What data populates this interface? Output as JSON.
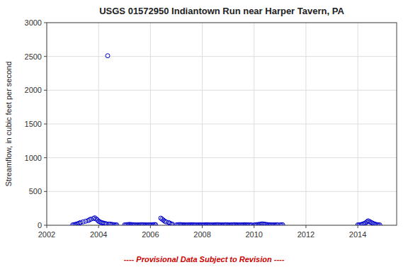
{
  "chart_data": {
    "type": "scatter",
    "title": "USGS 01572950 Indiantown Run near Harper Tavern, PA",
    "ylabel": "Streamflow, in cubic feet per second",
    "annotations": [
      {
        "text": "---- Provisional Data Subject to Revision ----",
        "color": "#cc0000"
      }
    ],
    "color": "#0000cc",
    "marker": "circle",
    "grid": true,
    "xlim": [
      2002,
      2015.5
    ],
    "ylim": [
      0,
      3000
    ],
    "xticks": [
      2002,
      2004,
      2006,
      2008,
      2010,
      2012,
      2014
    ],
    "yticks": [
      0,
      500,
      1000,
      1500,
      2000,
      2500,
      3000
    ],
    "x": [
      2003.0,
      2003.05,
      2003.1,
      2003.15,
      2003.2,
      2003.25,
      2003.3,
      2003.4,
      2003.5,
      2003.6,
      2003.65,
      2003.7,
      2003.8,
      2003.85,
      2003.9,
      2003.95,
      2004.0,
      2004.05,
      2004.1,
      2004.15,
      2004.2,
      2004.25,
      2004.3,
      2004.35,
      2004.4,
      2004.45,
      2004.5,
      2004.55,
      2004.6,
      2004.65,
      2004.7,
      2005.0,
      2005.05,
      2005.1,
      2005.15,
      2005.2,
      2005.25,
      2005.3,
      2005.35,
      2005.4,
      2005.45,
      2005.5,
      2005.55,
      2005.6,
      2005.65,
      2005.7,
      2005.75,
      2005.8,
      2005.85,
      2005.9,
      2005.95,
      2006.0,
      2006.05,
      2006.1,
      2006.15,
      2006.2,
      2006.4,
      2006.45,
      2006.5,
      2006.55,
      2006.6,
      2006.7,
      2006.75,
      2006.8,
      2006.85,
      2007.0,
      2007.05,
      2007.1,
      2007.15,
      2007.2,
      2007.25,
      2007.3,
      2007.35,
      2007.4,
      2007.45,
      2007.5,
      2007.55,
      2007.6,
      2007.65,
      2007.7,
      2007.75,
      2007.8,
      2007.85,
      2007.9,
      2007.95,
      2008.0,
      2008.05,
      2008.1,
      2008.15,
      2008.2,
      2008.25,
      2008.3,
      2008.35,
      2008.4,
      2008.45,
      2008.5,
      2008.55,
      2008.6,
      2008.65,
      2008.7,
      2008.75,
      2008.8,
      2008.85,
      2008.9,
      2008.95,
      2009.0,
      2009.05,
      2009.1,
      2009.15,
      2009.2,
      2009.25,
      2009.3,
      2009.35,
      2009.4,
      2009.45,
      2009.5,
      2009.55,
      2009.6,
      2009.65,
      2009.7,
      2009.75,
      2009.8,
      2009.85,
      2009.9,
      2010.0,
      2010.05,
      2010.1,
      2010.15,
      2010.2,
      2010.25,
      2010.3,
      2010.35,
      2010.4,
      2010.45,
      2010.5,
      2010.55,
      2010.6,
      2010.65,
      2010.7,
      2010.75,
      2010.8,
      2010.85,
      2010.9,
      2011.0,
      2011.05,
      2011.1,
      2014.0,
      2014.05,
      2014.1,
      2014.15,
      2014.2,
      2014.25,
      2014.3,
      2014.35,
      2014.4,
      2014.45,
      2014.5,
      2014.55,
      2014.6,
      2014.65,
      2014.7,
      2014.75,
      2014.8,
      2014.85
    ],
    "values": [
      5,
      8,
      12,
      18,
      22,
      30,
      40,
      50,
      60,
      70,
      80,
      90,
      100,
      110,
      95,
      80,
      60,
      50,
      40,
      35,
      30,
      25,
      20,
      2510,
      18,
      15,
      12,
      10,
      8,
      6,
      5,
      5,
      6,
      8,
      10,
      12,
      10,
      8,
      7,
      6,
      5,
      4,
      5,
      6,
      8,
      7,
      6,
      5,
      4,
      5,
      6,
      5,
      6,
      8,
      10,
      8,
      105,
      90,
      75,
      60,
      50,
      40,
      30,
      20,
      15,
      5,
      6,
      8,
      10,
      8,
      7,
      6,
      5,
      4,
      5,
      6,
      7,
      8,
      7,
      6,
      5,
      4,
      5,
      6,
      5,
      4,
      5,
      6,
      8,
      7,
      6,
      5,
      4,
      5,
      6,
      7,
      8,
      7,
      6,
      5,
      4,
      5,
      6,
      7,
      6,
      5,
      4,
      5,
      6,
      7,
      8,
      7,
      6,
      5,
      4,
      5,
      6,
      7,
      8,
      7,
      6,
      5,
      4,
      5,
      5,
      6,
      8,
      10,
      12,
      15,
      20,
      18,
      15,
      12,
      10,
      8,
      7,
      6,
      5,
      4,
      5,
      6,
      7,
      5,
      6,
      7,
      5,
      6,
      8,
      12,
      18,
      25,
      35,
      50,
      65,
      55,
      45,
      35,
      25,
      18,
      12,
      8,
      6,
      5
    ]
  }
}
